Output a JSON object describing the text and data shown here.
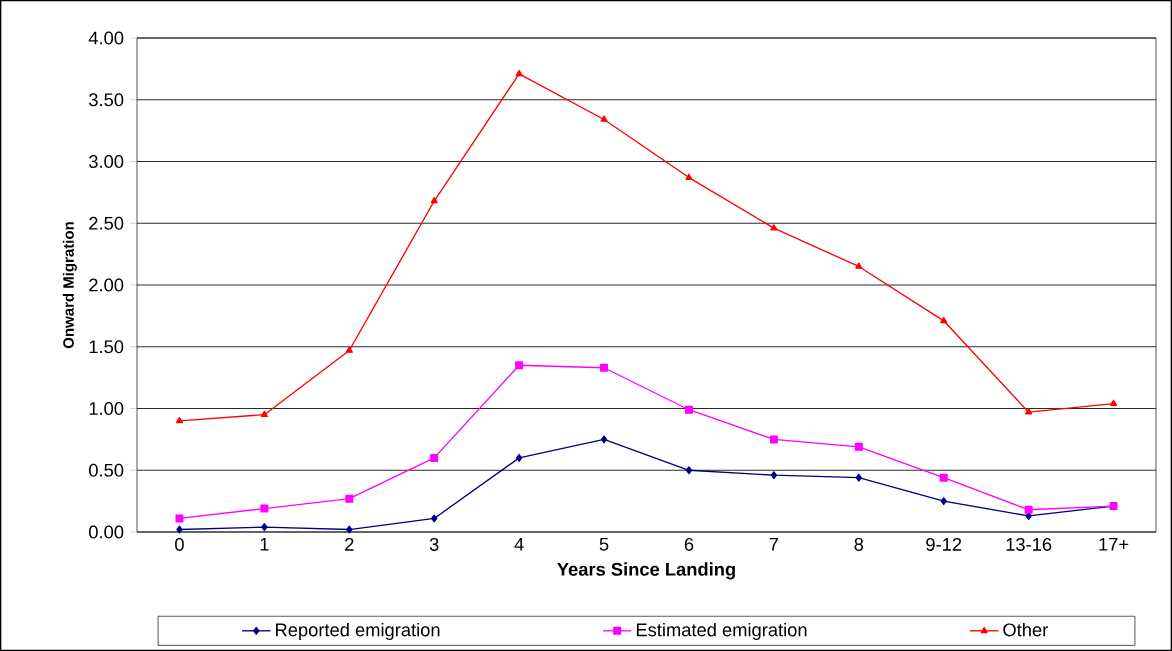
{
  "chart_data": {
    "type": "line",
    "xlabel": "Years Since Landing",
    "ylabel": "Onward Migration",
    "categories": [
      "0",
      "1",
      "2",
      "3",
      "4",
      "5",
      "6",
      "7",
      "8",
      "9-12",
      "13-16",
      "17+"
    ],
    "series": [
      {
        "name": "Reported emigration",
        "color": "#000080",
        "marker": "diamond",
        "values": [
          0.02,
          0.04,
          0.02,
          0.11,
          0.6,
          0.75,
          0.5,
          0.46,
          0.44,
          0.25,
          0.13,
          0.21
        ]
      },
      {
        "name": "Estimated emigration",
        "color": "#ff00ff",
        "marker": "square",
        "values": [
          0.11,
          0.19,
          0.27,
          0.6,
          1.35,
          1.33,
          0.99,
          0.75,
          0.69,
          0.44,
          0.18,
          0.21
        ]
      },
      {
        "name": "Other",
        "color": "#ff0000",
        "marker": "triangle",
        "values": [
          0.9,
          0.95,
          1.47,
          2.68,
          3.71,
          3.34,
          2.87,
          2.46,
          2.15,
          1.71,
          0.97,
          1.04
        ]
      }
    ],
    "ylim": [
      0,
      4
    ],
    "yticks": [
      {
        "value": 0,
        "label": "0.00"
      },
      {
        "value": 0.5,
        "label": "0.50"
      },
      {
        "value": 1,
        "label": "1.00"
      },
      {
        "value": 1.5,
        "label": "1.50"
      },
      {
        "value": 2,
        "label": "2.00"
      },
      {
        "value": 2.5,
        "label": "2.50"
      },
      {
        "value": 3,
        "label": "3.00"
      },
      {
        "value": 3.5,
        "label": "3.50"
      },
      {
        "value": 4,
        "label": "4.00"
      }
    ],
    "grid": "y",
    "legend": "bottom",
    "line_style": "solid"
  }
}
